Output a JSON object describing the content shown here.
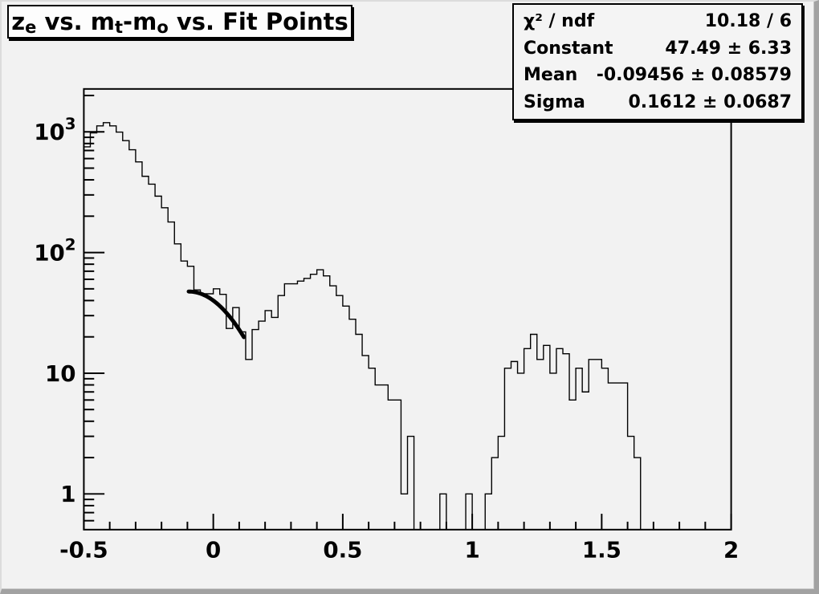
{
  "window": {
    "background_color": "#f2f2f2",
    "edge_dark_color": "#a2a2a2",
    "edge_light_color": "#dcdcdc"
  },
  "title": {
    "plain": "z_e vs. m_t-m_o vs. Fit Points",
    "segments": [
      {
        "text": "z"
      },
      {
        "text": "e"
      },
      {
        "text": " vs. m"
      },
      {
        "text": "t"
      },
      {
        "text": "-m"
      },
      {
        "text": "o"
      },
      {
        "text": " vs. Fit Points"
      }
    ]
  },
  "stats": {
    "rows": [
      {
        "label": "χ² / ndf",
        "value": "10.18 / 6"
      },
      {
        "label": "Constant",
        "value": "47.49 ± 6.33"
      },
      {
        "label": "Mean",
        "value": "-0.09456 ± 0.08579"
      },
      {
        "label": "Sigma",
        "value": "0.1612 ± 0.0687"
      }
    ]
  },
  "chart_data": {
    "type": "bar",
    "subtype": "histogram-step-log-y",
    "title": "z_e vs. m_t-m_o vs. Fit Points",
    "xlabel": "",
    "ylabel": "",
    "xlim": [
      -0.5,
      2.0
    ],
    "ylim": [
      0.506,
      2265
    ],
    "ylog": true,
    "grid": false,
    "line_color": "#000000",
    "x_start": -0.5,
    "bin_width": 0.025,
    "values": [
      750,
      980,
      1120,
      1190,
      1120,
      995,
      845,
      710,
      563,
      428,
      368,
      293,
      235,
      179,
      118,
      85,
      77,
      49,
      45.5,
      45.5,
      50,
      45,
      23.5,
      35,
      22,
      13,
      23,
      27,
      33,
      29,
      44,
      55,
      55,
      58,
      61,
      66,
      72,
      64,
      53,
      44,
      36,
      28,
      21,
      14,
      11,
      8,
      8,
      6,
      6,
      1,
      3,
      0,
      0,
      0,
      0,
      1,
      0,
      0,
      0,
      1,
      0,
      0,
      1,
      2,
      3,
      11,
      12.5,
      10,
      16,
      21,
      13,
      17,
      10,
      16,
      14.5,
      6,
      11,
      7,
      13,
      13,
      11,
      8.3,
      8.3,
      8.3,
      3,
      2
    ],
    "x_major_ticks": [
      -0.5,
      0,
      0.5,
      1,
      1.5,
      2
    ],
    "x_major_labels": [
      "-0.5",
      "0",
      "0.5",
      "1",
      "1.5",
      "2"
    ],
    "x_minor_step": 0.1,
    "y_major_ticks": [
      1,
      10,
      100,
      1000
    ],
    "y_major_labels": [
      {
        "base": "1",
        "exp": ""
      },
      {
        "base": "10",
        "exp": ""
      },
      {
        "base": "10",
        "exp": "2"
      },
      {
        "base": "10",
        "exp": "3"
      }
    ],
    "fit": {
      "function": "gaussian",
      "constant": 47.49,
      "mean": -0.09456,
      "sigma": 0.1612,
      "range": [
        -0.095,
        0.118
      ],
      "chi2": 10.18,
      "ndf": 6
    }
  }
}
